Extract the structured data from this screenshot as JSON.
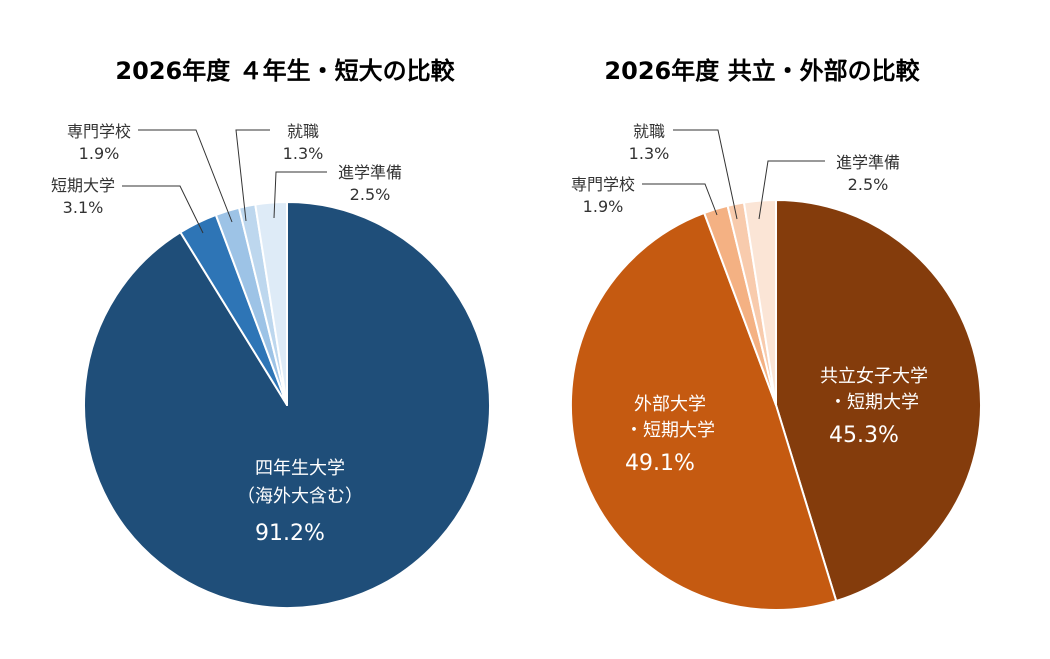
{
  "chart_data": [
    {
      "type": "pie",
      "title": "2026年度 ４年生・短大の比較",
      "slices": [
        {
          "name_lines": [
            "四年生大学",
            "（海外大含む）"
          ],
          "pct_label": "91.2%",
          "value": 91.2,
          "color": "#1F4E79",
          "label_color": "#ffffff"
        },
        {
          "name_lines": [
            "短期大学"
          ],
          "pct_label": "3.1%",
          "value": 3.1,
          "color": "#2E75B6",
          "label_color": "#333333"
        },
        {
          "name_lines": [
            "専門学校"
          ],
          "pct_label": "1.9%",
          "value": 1.9,
          "color": "#9DC3E6",
          "label_color": "#333333"
        },
        {
          "name_lines": [
            "就職"
          ],
          "pct_label": "1.3%",
          "value": 1.3,
          "color": "#BDD7EE",
          "label_color": "#333333"
        },
        {
          "name_lines": [
            "進学準備"
          ],
          "pct_label": "2.5%",
          "value": 2.5,
          "color": "#DEEBF7",
          "label_color": "#333333"
        }
      ]
    },
    {
      "type": "pie",
      "title": "2026年度 共立・外部の比較",
      "slices": [
        {
          "name_lines": [
            "共立女子大学",
            "・短期大学"
          ],
          "pct_label": "45.3%",
          "value": 45.3,
          "color": "#843C0C",
          "label_color": "#ffffff"
        },
        {
          "name_lines": [
            "外部大学",
            "・短期大学"
          ],
          "pct_label": "49.1%",
          "value": 49.1,
          "color": "#C55A11",
          "label_color": "#ffffff"
        },
        {
          "name_lines": [
            "専門学校"
          ],
          "pct_label": "1.9%",
          "value": 1.9,
          "color": "#F4B183",
          "label_color": "#333333"
        },
        {
          "name_lines": [
            "就職"
          ],
          "pct_label": "1.3%",
          "value": 1.3,
          "color": "#F8CBAD",
          "label_color": "#333333"
        },
        {
          "name_lines": [
            "進学準備"
          ],
          "pct_label": "2.5%",
          "value": 2.5,
          "color": "#FBE5D6",
          "label_color": "#333333"
        }
      ]
    }
  ]
}
